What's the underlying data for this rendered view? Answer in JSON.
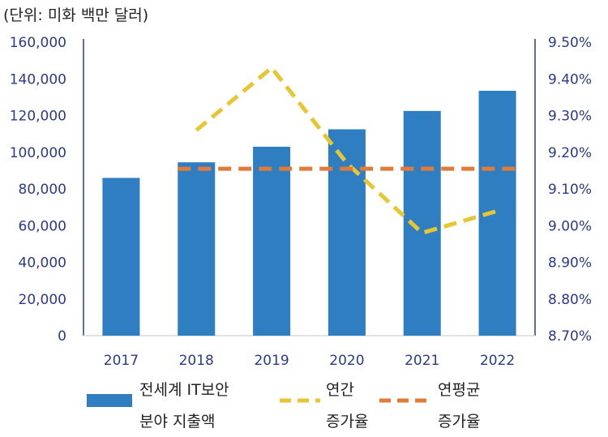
{
  "unit_note": "(단위: 미화 백만 달러)",
  "chart_data": {
    "type": "bar",
    "categories": [
      "2017",
      "2018",
      "2019",
      "2020",
      "2021",
      "2022"
    ],
    "series": [
      {
        "name": "전세계 IT보안 분야 지출액",
        "kind": "bar",
        "axis": "left",
        "color": "#2f7ec1",
        "values": [
          86000,
          94500,
          103000,
          112500,
          122500,
          133500
        ]
      },
      {
        "name": "연간 증가율",
        "kind": "line",
        "style": "dashed",
        "axis": "right",
        "color": "#e6c633",
        "values": [
          null,
          9.26,
          9.43,
          9.17,
          8.98,
          9.04
        ]
      },
      {
        "name": "연평균 증가율",
        "kind": "line",
        "style": "dashed",
        "axis": "right",
        "color": "#e07b39",
        "values": [
          null,
          9.155,
          9.155,
          9.155,
          9.155,
          9.155
        ]
      }
    ],
    "y_left": {
      "ylim": [
        0,
        160000
      ],
      "ticks": [
        "0",
        "20,000",
        "40,000",
        "60,000",
        "80,000",
        "100,000",
        "120,000",
        "140,000",
        "160,000"
      ]
    },
    "y_right": {
      "ylim": [
        8.7,
        9.5
      ],
      "ticks": [
        "8.70%",
        "8.80%",
        "8.90%",
        "9.00%",
        "9.10%",
        "9.20%",
        "9.30%",
        "9.40%",
        "9.50%"
      ]
    },
    "grid": false,
    "legend_position": "bottom"
  },
  "legend": {
    "bar_line1": "전세계 IT보안",
    "bar_line2": "분야 지출액",
    "annual_line1": "연간",
    "annual_line2": "증가율",
    "cagr_line1": "연평균",
    "cagr_line2": "증가율"
  },
  "colors": {
    "bar": "#2f7ec1",
    "annual": "#e6c633",
    "cagr": "#e07b39",
    "axis": "#2b3a8c"
  }
}
